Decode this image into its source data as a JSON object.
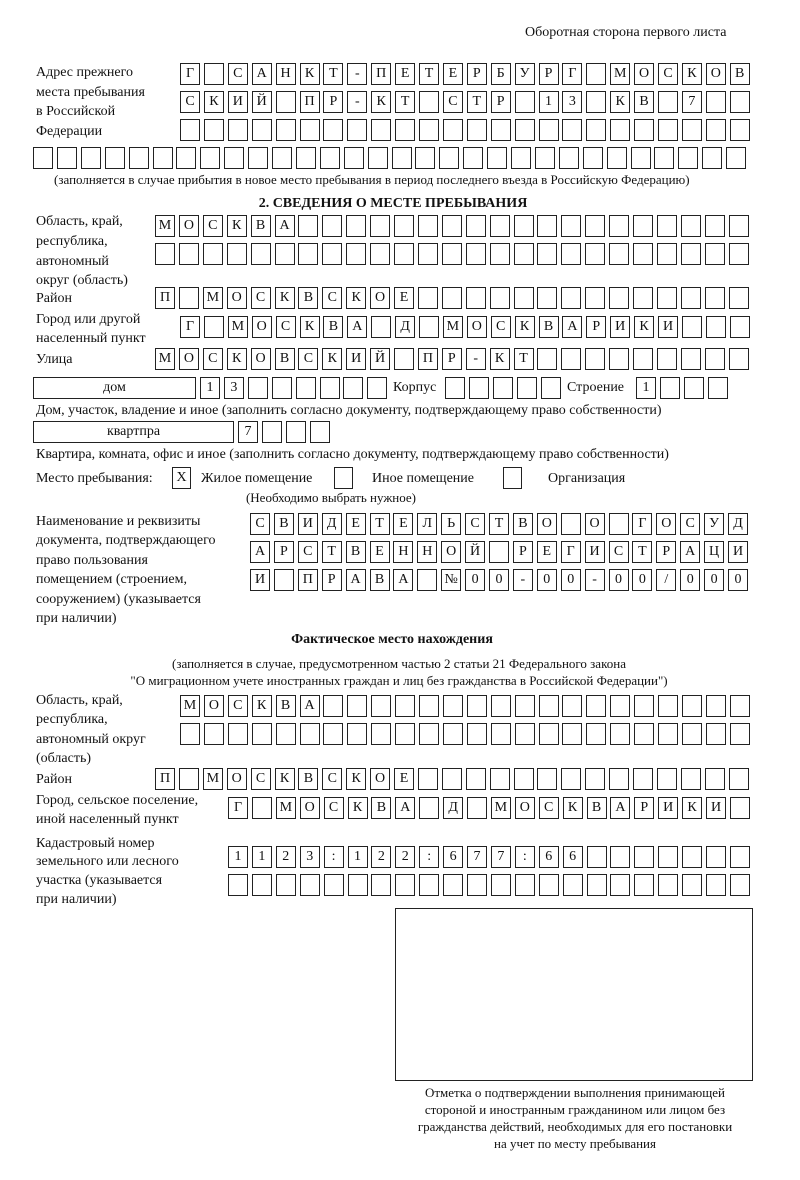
{
  "header": "Оборотная сторона первого листа",
  "prev_address": {
    "label": [
      "Адрес прежнего",
      "места пребывания",
      "в Российской",
      "Федерации"
    ],
    "rows": [
      "Г САНКТ-ПЕТЕРБУРГ МОСКОВ",
      "СКИЙ ПР-КТ СТР 13 КВ 7  ",
      "",
      ""
    ],
    "note": "(заполняется в случае прибытия в новое место пребывания в период последнего въезда в Российскую Федерацию)"
  },
  "section2": {
    "title": "2. СВЕДЕНИЯ О МЕСТЕ ПРЕБЫВАНИЯ",
    "region_label": [
      "Область, край,",
      "республика,",
      "автономный",
      "округ (область)"
    ],
    "region_rows": [
      "МОСКВА",
      ""
    ],
    "district_label": "Район",
    "district": "П МОСКВСКОЕ",
    "city_label": [
      "Город или другой",
      "населенный пункт"
    ],
    "city": "Г МОСКВА Д МОСКВАРИКИ",
    "street_label": "Улица",
    "street": "МОСКОВСКИЙ ПР-КТ",
    "house_type": "дом",
    "house_number": "13",
    "korpus_label": "Корпус",
    "korpus": "",
    "building_label": "Строение",
    "building": "1",
    "house_note": "Дом, участок, владение и иное (заполнить согласно документу, подтверждающему право собственности)",
    "apt_type": "квартпра",
    "apt_number": "7",
    "apt_note": "Квартира, комната, офис и иное (заполнить согласно документу, подтверждающему право собственности)",
    "place_label": "Место пребывания:",
    "place_options": [
      {
        "label": "Жилое помещение",
        "mark": "X",
        "checked": true
      },
      {
        "label": "Иное помещение",
        "mark": "",
        "checked": false
      },
      {
        "label": "Организация",
        "mark": "",
        "checked": false
      }
    ],
    "place_note": "(Необходимо выбрать нужное)",
    "doc_label": [
      "Наименование и реквизиты",
      "документа, подтверждающего",
      "право пользования",
      "помещением (строением,",
      "сооружением) (указывается",
      "при наличии)"
    ],
    "doc_rows": [
      "СВИДЕТЕЛЬСТВО О ГОСУД",
      "АРСТВЕННОЙ РЕГИСТРАЦИ",
      "И ПРАВА №00-00-00/000"
    ]
  },
  "actual": {
    "title": "Фактическое место нахождения",
    "note": [
      "(заполняется в случае, предусмотренном частью 2 статьи 21 Федерального закона",
      "\"О миграционном учете иностранных граждан и лиц без гражданства в Российской Федерации\")"
    ],
    "region_label": [
      "Область, край,",
      "республика,",
      "автономный округ",
      "(область)"
    ],
    "region_rows": [
      "МОСКВА",
      ""
    ],
    "district_label": "Район",
    "district": "П МОСКВСКОЕ",
    "city_label": [
      "Город, сельское поселение,",
      "иной населенный пункт"
    ],
    "city": "Г МОСКВА Д МОСКВАРИКИ",
    "cadastre_label": [
      "Кадастровый номер",
      "земельного или лесного",
      "участка (указывается",
      "при наличии)"
    ],
    "cadastre_rows": [
      "1123:122:677:66",
      ""
    ]
  },
  "stamp_caption": [
    "Отметка о подтверждении выполнения принимающей",
    "стороной и иностранным гражданином или лицом без",
    "гражданства действий, необходимых для его постановки",
    "на учет по месту пребывания"
  ]
}
